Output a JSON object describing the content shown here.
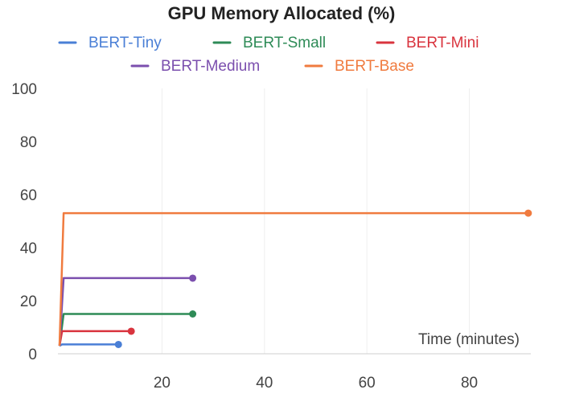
{
  "chart_data": {
    "type": "line",
    "title": "GPU Memory Allocated (%)",
    "xlabel": "Time (minutes)",
    "ylabel": "",
    "xlim": [
      0,
      92
    ],
    "ylim": [
      0,
      100
    ],
    "x_ticks": [
      20,
      40,
      60,
      80
    ],
    "y_ticks": [
      0,
      20,
      40,
      60,
      80,
      100
    ],
    "grid": {
      "x": true,
      "y": false
    },
    "legend_position": "top",
    "series": [
      {
        "name": "BERT-Tiny",
        "color": "#4a7fd6",
        "points": [
          [
            0,
            3
          ],
          [
            0.5,
            3.5
          ],
          [
            11.5,
            3.5
          ]
        ]
      },
      {
        "name": "BERT-Small",
        "color": "#2e8b57",
        "points": [
          [
            0,
            3
          ],
          [
            0.8,
            15
          ],
          [
            26,
            15
          ]
        ]
      },
      {
        "name": "BERT-Mini",
        "color": "#d9343e",
        "points": [
          [
            0,
            3
          ],
          [
            0.5,
            8.5
          ],
          [
            14,
            8.5
          ]
        ]
      },
      {
        "name": "BERT-Medium",
        "color": "#7b4fae",
        "points": [
          [
            0,
            3
          ],
          [
            0.8,
            28.5
          ],
          [
            26,
            28.5
          ]
        ]
      },
      {
        "name": "BERT-Base",
        "color": "#f07b3f",
        "points": [
          [
            0,
            3
          ],
          [
            0.8,
            53
          ],
          [
            91.5,
            53
          ]
        ]
      }
    ]
  }
}
